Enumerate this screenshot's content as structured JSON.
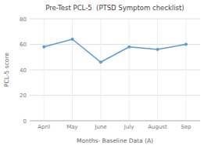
{
  "chart_data": {
    "type": "line",
    "title": "Pre-Test PCL-5  (PTSD Symptom checklist)",
    "xlabel": "Months- Baseline Data (A)",
    "ylabel": "PCL-5 score",
    "categories": [
      "April",
      "May",
      "June",
      "July",
      "August",
      "Sep"
    ],
    "values": [
      58,
      64,
      46,
      58,
      56,
      60
    ],
    "color": "#5b9bd5",
    "marker": "circle",
    "ylim": [
      0,
      80
    ],
    "yticks": [
      0,
      20,
      40,
      60,
      80
    ],
    "grid": true
  }
}
